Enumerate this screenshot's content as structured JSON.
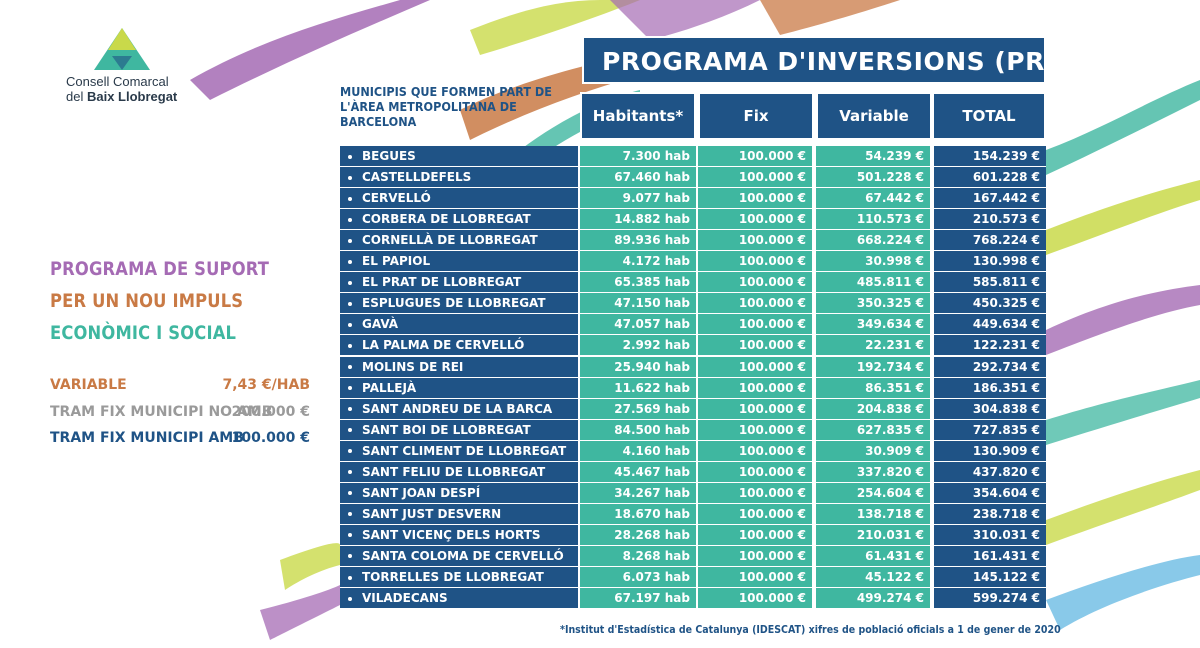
{
  "logo": {
    "line1": "Consell Comarcal",
    "line2_prefix": "del ",
    "line2_bold": "Baix Llobregat"
  },
  "side_title": {
    "line1": "PROGRAMA DE SUPORT",
    "line2": "PER UN NOU IMPULS",
    "line3": "ECONÒMIC I SOCIAL"
  },
  "legend": [
    {
      "label": "VARIABLE",
      "value": "7,43 €/HAB",
      "color": "#c97a45"
    },
    {
      "label": "TRAM FIX MUNICIPI NO AMB",
      "value": "200.000 €",
      "color": "#9a9a9a"
    },
    {
      "label": "TRAM FIX MUNICIPI  AMB",
      "value": "100.000 €",
      "color": "#1f5386"
    }
  ],
  "colors": {
    "title1": "#a56bb4",
    "title2": "#c97a45",
    "title3": "#3fb7a0",
    "navy": "#1f5386",
    "teal": "#3fb7a0"
  },
  "program_title": "PROGRAMA D'INVERSIONS  (PRI)",
  "muni_heading": "MUNICIPIS  QUE FORMEN PART DE L'ÀREA METROPOLITANA DE BARCELONA",
  "headers": {
    "habitants": "Habitants*",
    "fix": "Fix",
    "variable": "Variable",
    "total": "TOTAL"
  },
  "rows": [
    {
      "name": "BEGUES",
      "habitants": "7.300 hab",
      "fix": "100.000 €",
      "variable": "54.239 €",
      "total": "154.239 €"
    },
    {
      "name": "CASTELLDEFELS",
      "habitants": "67.460 hab",
      "fix": "100.000 €",
      "variable": "501.228 €",
      "total": "601.228 €"
    },
    {
      "name": "CERVELLÓ",
      "habitants": "9.077 hab",
      "fix": "100.000 €",
      "variable": "67.442 €",
      "total": "167.442 €"
    },
    {
      "name": "CORBERA DE LLOBREGAT",
      "habitants": "14.882 hab",
      "fix": "100.000 €",
      "variable": "110.573 €",
      "total": "210.573 €"
    },
    {
      "name": "CORNELLÀ DE LLOBREGAT",
      "habitants": "89.936 hab",
      "fix": "100.000 €",
      "variable": "668.224 €",
      "total": "768.224 €"
    },
    {
      "name": "EL PAPIOL",
      "habitants": "4.172 hab",
      "fix": "100.000 €",
      "variable": "30.998 €",
      "total": "130.998 €"
    },
    {
      "name": "EL PRAT DE LLOBREGAT",
      "habitants": "65.385 hab",
      "fix": "100.000 €",
      "variable": "485.811 €",
      "total": "585.811 €"
    },
    {
      "name": "ESPLUGUES DE LLOBREGAT",
      "habitants": "47.150 hab",
      "fix": "100.000 €",
      "variable": "350.325 €",
      "total": "450.325 €"
    },
    {
      "name": "GAVÀ",
      "habitants": "47.057 hab",
      "fix": "100.000 €",
      "variable": "349.634 €",
      "total": "449.634 €"
    },
    {
      "name": "LA PALMA DE CERVELLÓ",
      "habitants": "2.992 hab",
      "fix": "100.000 €",
      "variable": "22.231 €",
      "total": "122.231 €"
    },
    {
      "name": "MOLINS DE REI",
      "habitants": "25.940 hab",
      "fix": "100.000 €",
      "variable": "192.734 €",
      "total": "292.734 €"
    },
    {
      "name": "PALLEJÀ",
      "habitants": "11.622 hab",
      "fix": "100.000 €",
      "variable": "86.351 €",
      "total": "186.351 €"
    },
    {
      "name": "SANT ANDREU DE LA BARCA",
      "habitants": "27.569 hab",
      "fix": "100.000 €",
      "variable": "204.838 €",
      "total": "304.838 €"
    },
    {
      "name": "SANT BOI DE LLOBREGAT",
      "habitants": "84.500 hab",
      "fix": "100.000 €",
      "variable": "627.835 €",
      "total": "727.835 €"
    },
    {
      "name": "SANT CLIMENT DE LLOBREGAT",
      "habitants": "4.160 hab",
      "fix": "100.000 €",
      "variable": "30.909 €",
      "total": "130.909 €"
    },
    {
      "name": "SANT FELIU DE LLOBREGAT",
      "habitants": "45.467 hab",
      "fix": "100.000 €",
      "variable": "337.820 €",
      "total": "437.820 €"
    },
    {
      "name": "SANT JOAN DESPÍ",
      "habitants": "34.267 hab",
      "fix": "100.000 €",
      "variable": "254.604 €",
      "total": "354.604 €"
    },
    {
      "name": "SANT JUST DESVERN",
      "habitants": "18.670 hab",
      "fix": "100.000 €",
      "variable": "138.718 €",
      "total": "238.718 €"
    },
    {
      "name": "SANT VICENÇ DELS HORTS",
      "habitants": "28.268 hab",
      "fix": "100.000 €",
      "variable": "210.031 €",
      "total": "310.031 €"
    },
    {
      "name": "SANTA COLOMA DE CERVELLÓ",
      "habitants": "8.268 hab",
      "fix": "100.000 €",
      "variable": "61.431 €",
      "total": "161.431 €"
    },
    {
      "name": "TORRELLES DE LLOBREGAT",
      "habitants": "6.073 hab",
      "fix": "100.000 €",
      "variable": "45.122 €",
      "total": "145.122 €"
    },
    {
      "name": "VILADECANS",
      "habitants": "67.197 hab",
      "fix": "100.000 €",
      "variable": "499.274 €",
      "total": "599.274 €"
    }
  ],
  "footnote": "*Institut d'Estadística de Catalunya (IDESCAT) xifres de població oficials a 1 de gener de 2020"
}
